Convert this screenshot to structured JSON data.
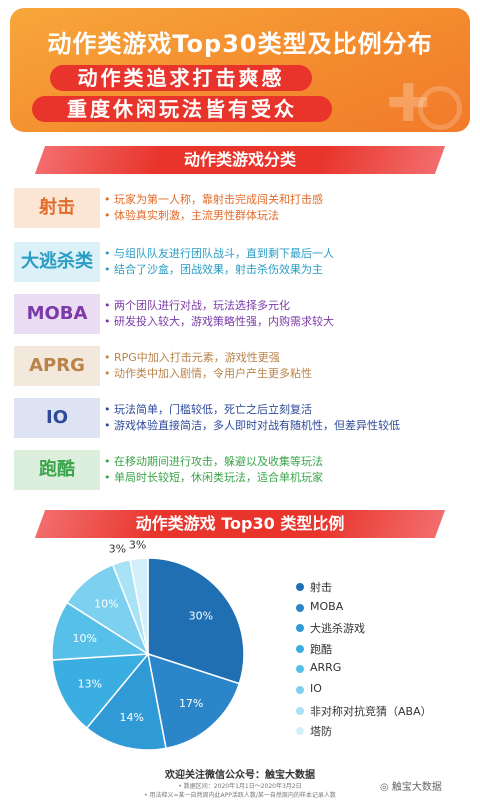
{
  "header": {
    "title": "动作类游戏Top30类型及比例分布",
    "subtitle_1": "动作类追求打击爽感",
    "subtitle_2": "重度休闲玩法皆有受众"
  },
  "section_1": {
    "title": "动作类游戏分类",
    "rows": [
      {
        "tag": "射击",
        "color": "#e26b2a",
        "bg": "#fbe6d6",
        "desc_color": "#e26b2a",
        "lines": [
          "玩家为第一人称，靠射击完成闯关和打击感",
          "体验真实刺激，主流男性群体玩法"
        ]
      },
      {
        "tag": "大逃杀类",
        "color": "#2a9dc4",
        "bg": "#dcf0f7",
        "desc_color": "#2a9dc4",
        "lines": [
          "与组队队友进行团队战斗，直到剩下最后一人",
          "结合了沙盒，团战效果，射击杀伤效果为主"
        ]
      },
      {
        "tag": "MOBA",
        "color": "#7b3aa8",
        "bg": "#eadcf3",
        "desc_color": "#7b3aa8",
        "lines": [
          "两个团队进行对战，玩法选择多元化",
          "研发投入较大，游戏策略性强，内购需求较大"
        ]
      },
      {
        "tag": "APRG",
        "color": "#b9834a",
        "bg": "#f3e8dc",
        "desc_color": "#b9834a",
        "lines": [
          "RPG中加入打击元素，游戏性更强",
          "动作类中加入剧情，令用户产生更多粘性"
        ]
      },
      {
        "tag": "IO",
        "color": "#2d4a9a",
        "bg": "#dde3f2",
        "desc_color": "#2d4a9a",
        "lines": [
          "玩法简单，门槛较低，死亡之后立刻复活",
          "游戏体验直接简洁，多人即时对战有随机性，但差异性较低"
        ]
      },
      {
        "tag": "跑酷",
        "color": "#3aa54a",
        "bg": "#dcefdc",
        "desc_color": "#3aa54a",
        "lines": [
          "在移动期间进行攻击，躲避以及收集等玩法",
          "单局时长较短，休闲类玩法，适合单机玩家"
        ]
      }
    ]
  },
  "section_2": {
    "title": "动作类游戏 Top30 类型比例"
  },
  "chart_data": {
    "type": "pie",
    "title": "动作类游戏 Top30 类型比例",
    "categories": [
      "射击",
      "MOBA",
      "大逃杀游戏",
      "跑酷",
      "ARRG",
      "IO",
      "非对称对抗竞猜（ABA）",
      "塔防"
    ],
    "values": [
      30,
      17,
      14,
      13,
      10,
      10,
      3,
      3
    ],
    "labels": [
      "30%",
      "17%",
      "14%",
      "13%",
      "10%",
      "10%",
      "3%",
      "3%"
    ],
    "colors": [
      "#1f6fb2",
      "#2a86c9",
      "#2f9ad6",
      "#3aaee0",
      "#56c0e8",
      "#7dd0ef",
      "#a9e1f5",
      "#d3f0fa"
    ],
    "legend_placement": "right"
  },
  "footer": {
    "main": "欢迎关注微信公众号：触宝大数据",
    "note_1": "• 数据区间：2020年1月1日～2020年3月2日",
    "note_2": "• 用法释义=某一自然周内此APP活跃人数/某一自然周内的样本记录人数",
    "wechat": "触宝大数据"
  }
}
